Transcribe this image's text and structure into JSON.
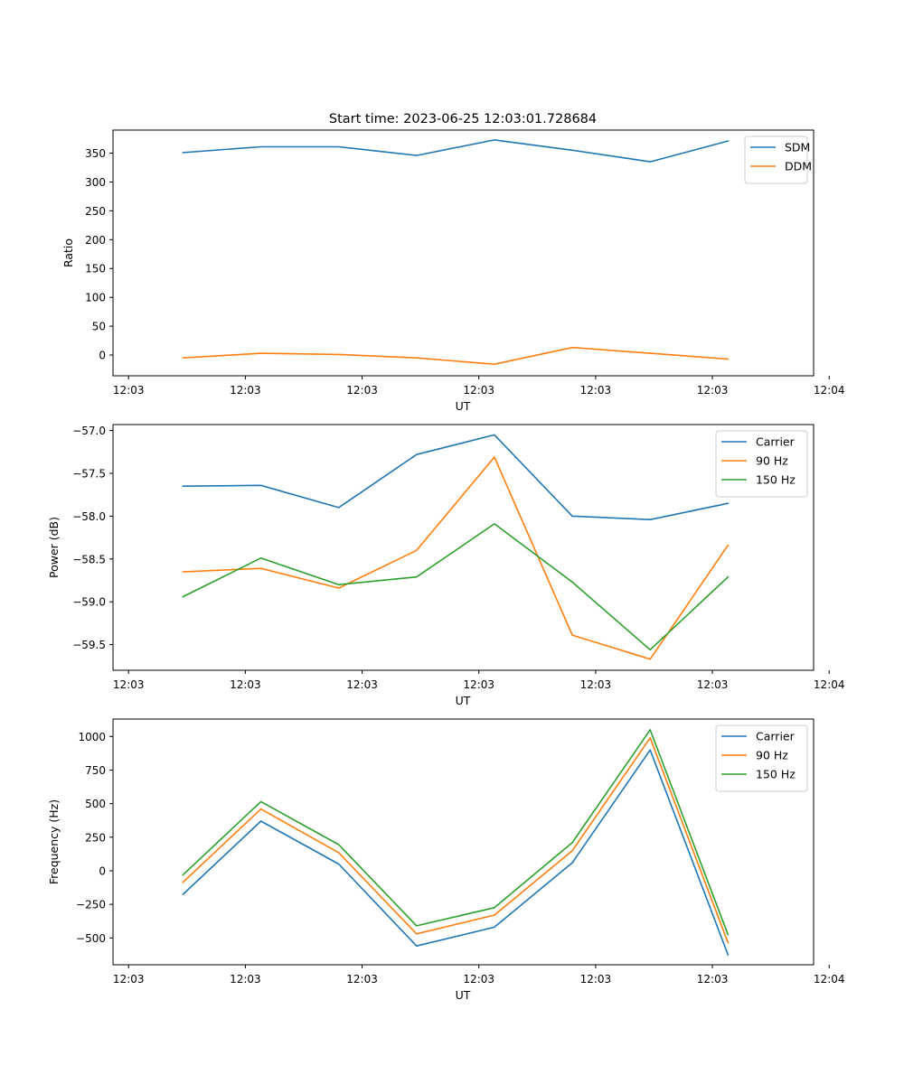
{
  "figure": {
    "title": "Start time: 2023-06-25 12:03:01.728684"
  },
  "chart_data": [
    {
      "type": "line",
      "title": "Start time: 2023-06-25 12:03:01.728684",
      "xlabel": "UT",
      "ylabel": "Ratio",
      "x": [
        "12:03:01.7",
        "12:03:02.7",
        "12:03:03.7",
        "12:03:04.7",
        "12:03:05.7",
        "12:03:06.7",
        "12:03:07.7",
        "12:03:08.7"
      ],
      "xlim": [
        "12:03:00.8",
        "12:03:09.8"
      ],
      "xticks": [
        {
          "pos": "12:03:01.0",
          "label": "12:03"
        },
        {
          "pos": "12:03:02.5",
          "label": "12:03"
        },
        {
          "pos": "12:03:04.0",
          "label": "12:03"
        },
        {
          "pos": "12:03:05.5",
          "label": "12:03"
        },
        {
          "pos": "12:03:07.0",
          "label": "12:03"
        },
        {
          "pos": "12:03:08.5",
          "label": "12:03"
        },
        {
          "pos": "12:03:10.0",
          "label": "12:04"
        }
      ],
      "ylim": [
        -36,
        390
      ],
      "yticks": [
        0,
        50,
        100,
        150,
        200,
        250,
        300,
        350
      ],
      "series": [
        {
          "name": "SDM",
          "color": "#1f77b4",
          "values": [
            351,
            361,
            361,
            346,
            373,
            355,
            335,
            371
          ]
        },
        {
          "name": "DDM",
          "color": "#ff7f0e",
          "values": [
            -5,
            3,
            1,
            -5,
            -16,
            13,
            3,
            -7
          ]
        }
      ],
      "legend": "top-right",
      "grid": false
    },
    {
      "type": "line",
      "xlabel": "UT",
      "ylabel": "Power (dB)",
      "x": [
        "12:03:01.7",
        "12:03:02.7",
        "12:03:03.7",
        "12:03:04.7",
        "12:03:05.7",
        "12:03:06.7",
        "12:03:07.7",
        "12:03:08.7"
      ],
      "xlim": [
        "12:03:00.8",
        "12:03:09.8"
      ],
      "xticks": [
        {
          "pos": "12:03:01.0",
          "label": "12:03"
        },
        {
          "pos": "12:03:02.5",
          "label": "12:03"
        },
        {
          "pos": "12:03:04.0",
          "label": "12:03"
        },
        {
          "pos": "12:03:05.5",
          "label": "12:03"
        },
        {
          "pos": "12:03:07.0",
          "label": "12:03"
        },
        {
          "pos": "12:03:08.5",
          "label": "12:03"
        },
        {
          "pos": "12:03:10.0",
          "label": "12:04"
        }
      ],
      "ylim": [
        -59.8,
        -56.93
      ],
      "yticks": [
        -59.5,
        -59.0,
        -58.5,
        -58.0,
        -57.5,
        -57.0
      ],
      "ytick_labels": [
        "−59.5",
        "−59.0",
        "−58.5",
        "−58.0",
        "−57.5",
        "−57.0"
      ],
      "series": [
        {
          "name": "Carrier",
          "color": "#1f77b4",
          "values": [
            -57.65,
            -57.64,
            -57.9,
            -57.28,
            -57.05,
            -58.0,
            -58.04,
            -57.85
          ]
        },
        {
          "name": "90 Hz",
          "color": "#ff7f0e",
          "values": [
            -58.65,
            -58.61,
            -58.84,
            -58.4,
            -57.31,
            -59.39,
            -59.67,
            -58.34
          ]
        },
        {
          "name": "150 Hz",
          "color": "#2ca02c",
          "values": [
            -58.94,
            -58.49,
            -58.8,
            -58.71,
            -58.09,
            -58.77,
            -59.56,
            -58.71
          ]
        }
      ],
      "legend": "top-right",
      "grid": false
    },
    {
      "type": "line",
      "xlabel": "UT",
      "ylabel": "Frequency (Hz)",
      "x": [
        "12:03:01.7",
        "12:03:02.7",
        "12:03:03.7",
        "12:03:04.7",
        "12:03:05.7",
        "12:03:06.7",
        "12:03:07.7",
        "12:03:08.7"
      ],
      "xlim": [
        "12:03:00.8",
        "12:03:09.8"
      ],
      "xticks": [
        {
          "pos": "12:03:01.0",
          "label": "12:03"
        },
        {
          "pos": "12:03:02.5",
          "label": "12:03"
        },
        {
          "pos": "12:03:04.0",
          "label": "12:03"
        },
        {
          "pos": "12:03:05.5",
          "label": "12:03"
        },
        {
          "pos": "12:03:07.0",
          "label": "12:03"
        },
        {
          "pos": "12:03:08.5",
          "label": "12:03"
        },
        {
          "pos": "12:03:10.0",
          "label": "12:04"
        }
      ],
      "ylim": [
        -700,
        1130
      ],
      "yticks": [
        -500,
        -250,
        0,
        250,
        500,
        750,
        1000
      ],
      "ytick_labels": [
        "−500",
        "−250",
        "0",
        "250",
        "500",
        "750",
        "1000"
      ],
      "series": [
        {
          "name": "Carrier",
          "color": "#1f77b4",
          "values": [
            -175,
            370,
            50,
            -560,
            -420,
            60,
            900,
            -625
          ]
        },
        {
          "name": "90 Hz",
          "color": "#ff7f0e",
          "values": [
            -85,
            460,
            135,
            -470,
            -330,
            150,
            990,
            -535
          ]
        },
        {
          "name": "150 Hz",
          "color": "#2ca02c",
          "values": [
            -30,
            515,
            195,
            -410,
            -275,
            210,
            1050,
            -475
          ]
        }
      ],
      "legend": "top-right",
      "grid": false
    }
  ]
}
